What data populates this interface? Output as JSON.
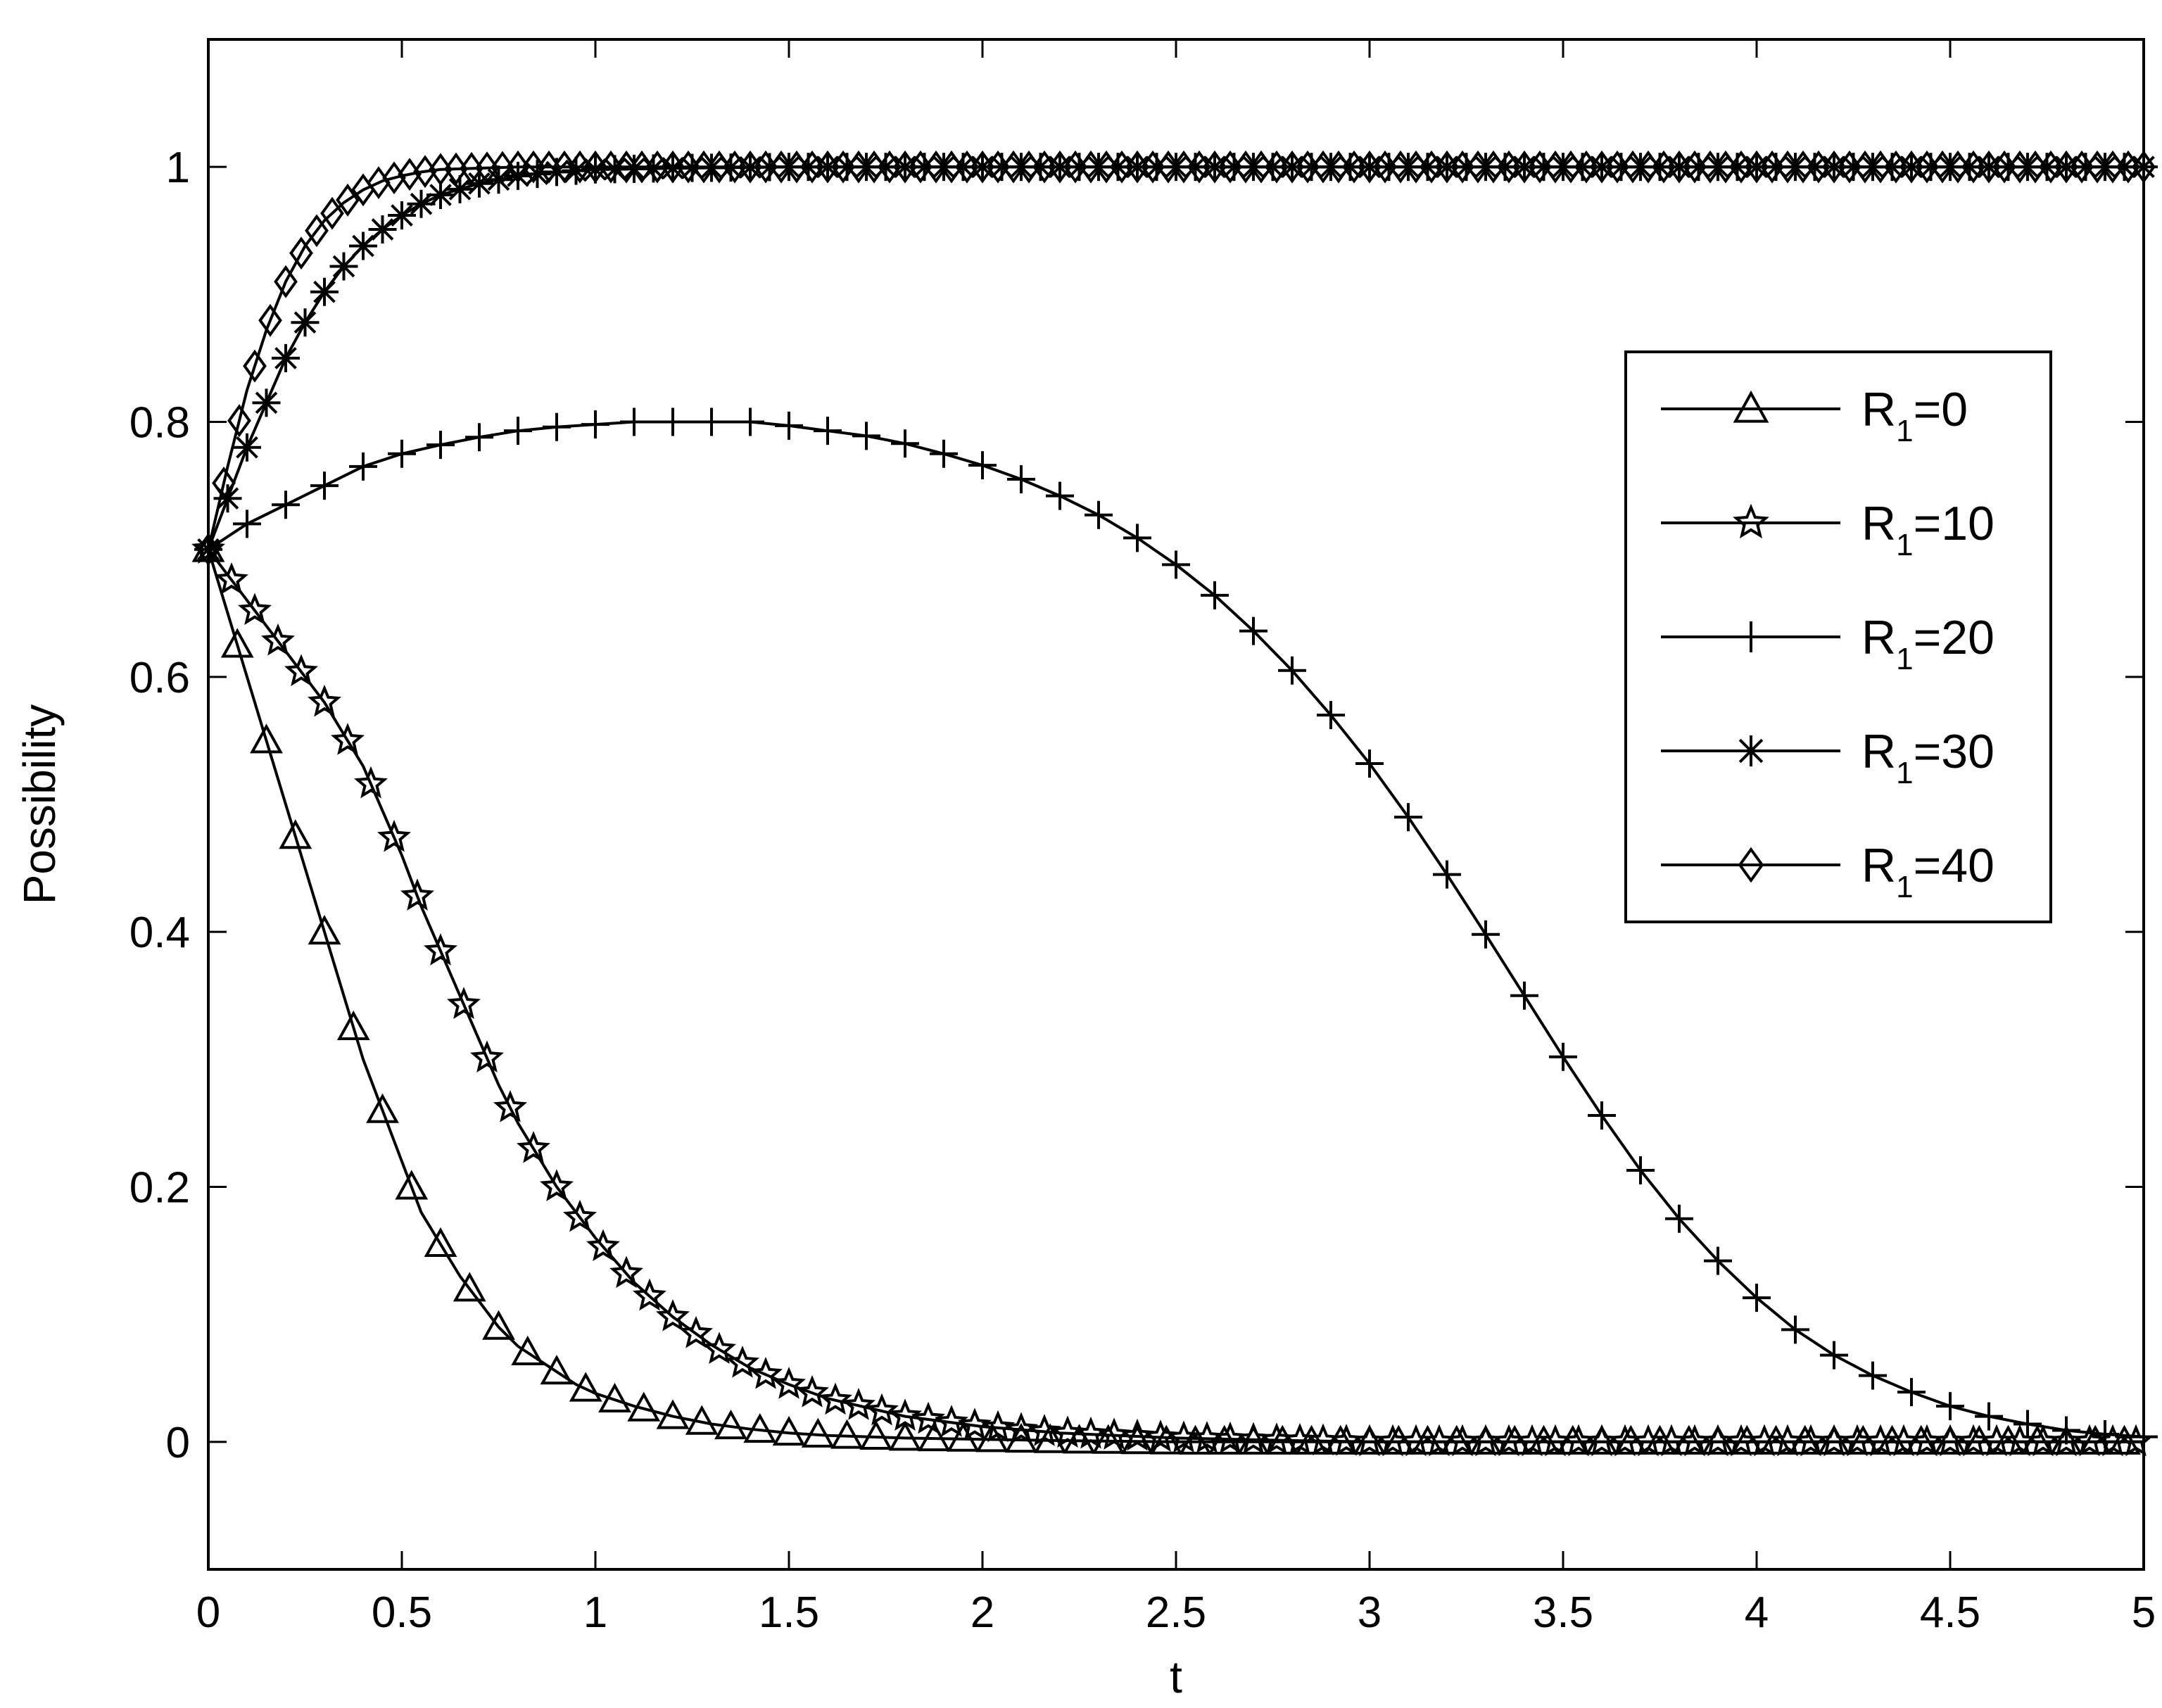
{
  "chart_data": {
    "type": "line",
    "title": "",
    "xlabel": "t",
    "ylabel": "Possibility",
    "xlim": [
      0,
      5
    ],
    "ylim": [
      -0.1,
      1.1
    ],
    "xticks": [
      0,
      0.5,
      1,
      1.5,
      2,
      2.5,
      3,
      3.5,
      4,
      4.5,
      5
    ],
    "xtick_labels": [
      "0",
      "0.5",
      "1",
      "1.5",
      "2",
      "2.5",
      "3",
      "3.5",
      "4",
      "4.5",
      "5"
    ],
    "yticks": [
      0,
      0.2,
      0.4,
      0.6,
      0.8,
      1
    ],
    "ytick_labels": [
      "0",
      "0.2",
      "0.4",
      "0.6",
      "0.8",
      "1"
    ],
    "grid": false,
    "legend_position": "right",
    "series": [
      {
        "name": "R1=0",
        "label_main": "R",
        "label_sub": "1",
        "label_rest": "=0",
        "marker": "triangle",
        "x": [
          0,
          0.04,
          0.08,
          0.12,
          0.16,
          0.2,
          0.25,
          0.3,
          0.35,
          0.4,
          0.45,
          0.5,
          0.55,
          0.6,
          0.65,
          0.7,
          0.75,
          0.8,
          0.85,
          0.9,
          0.95,
          1.0,
          1.1,
          1.2,
          1.3,
          1.4,
          1.5,
          1.6,
          1.8,
          2.0,
          2.2,
          2.5,
          2.8,
          3.0,
          3.3,
          3.6,
          4.0,
          4.5,
          5.0
        ],
        "y": [
          0.7,
          0.66,
          0.62,
          0.58,
          0.54,
          0.5,
          0.45,
          0.4,
          0.35,
          0.3,
          0.26,
          0.22,
          0.18,
          0.155,
          0.13,
          0.11,
          0.09,
          0.075,
          0.065,
          0.055,
          0.045,
          0.038,
          0.028,
          0.02,
          0.014,
          0.01,
          0.007,
          0.005,
          0.003,
          0.002,
          0.001,
          0,
          0,
          0,
          0,
          0,
          0,
          0,
          0
        ]
      },
      {
        "name": "R1=10",
        "label_main": "R",
        "label_sub": "1",
        "label_rest": "=10",
        "marker": "star",
        "x": [
          0,
          0.05,
          0.1,
          0.15,
          0.2,
          0.25,
          0.3,
          0.35,
          0.4,
          0.45,
          0.5,
          0.55,
          0.6,
          0.65,
          0.7,
          0.75,
          0.8,
          0.85,
          0.9,
          0.95,
          1.0,
          1.1,
          1.2,
          1.3,
          1.4,
          1.5,
          1.6,
          1.8,
          2.0,
          2.2,
          2.5,
          2.8,
          3.0,
          3.5,
          4.0,
          4.5,
          5.0
        ],
        "y": [
          0.7,
          0.68,
          0.66,
          0.64,
          0.62,
          0.6,
          0.58,
          0.555,
          0.53,
          0.495,
          0.46,
          0.42,
          0.385,
          0.35,
          0.315,
          0.28,
          0.25,
          0.225,
          0.2,
          0.18,
          0.16,
          0.125,
          0.098,
          0.076,
          0.058,
          0.045,
          0.034,
          0.02,
          0.012,
          0.007,
          0.003,
          0.001,
          0,
          0,
          0,
          0,
          0
        ]
      },
      {
        "name": "R1=20",
        "label_main": "R",
        "label_sub": "1",
        "label_rest": "=20",
        "marker": "plus",
        "x": [
          0,
          0.1,
          0.2,
          0.3,
          0.4,
          0.5,
          0.6,
          0.7,
          0.8,
          0.9,
          1.0,
          1.1,
          1.2,
          1.3,
          1.4,
          1.5,
          1.6,
          1.7,
          1.8,
          1.9,
          2.0,
          2.1,
          2.2,
          2.3,
          2.4,
          2.5,
          2.6,
          2.7,
          2.8,
          2.9,
          3.0,
          3.1,
          3.2,
          3.3,
          3.4,
          3.5,
          3.6,
          3.7,
          3.8,
          3.9,
          4.0,
          4.1,
          4.2,
          4.3,
          4.4,
          4.5,
          4.6,
          4.7,
          4.8,
          4.9,
          5.0
        ],
        "y": [
          0.7,
          0.72,
          0.735,
          0.75,
          0.765,
          0.775,
          0.782,
          0.788,
          0.793,
          0.796,
          0.798,
          0.8,
          0.8,
          0.8,
          0.8,
          0.797,
          0.793,
          0.789,
          0.783,
          0.775,
          0.766,
          0.755,
          0.742,
          0.727,
          0.709,
          0.688,
          0.664,
          0.636,
          0.605,
          0.57,
          0.532,
          0.49,
          0.445,
          0.398,
          0.35,
          0.302,
          0.256,
          0.213,
          0.175,
          0.142,
          0.113,
          0.088,
          0.068,
          0.052,
          0.039,
          0.028,
          0.02,
          0.014,
          0.009,
          0.006,
          0.004
        ]
      },
      {
        "name": "R1=30",
        "label_main": "R",
        "label_sub": "1",
        "label_rest": "=30",
        "marker": "asterisk",
        "x": [
          0,
          0.05,
          0.1,
          0.15,
          0.2,
          0.25,
          0.3,
          0.35,
          0.4,
          0.45,
          0.5,
          0.55,
          0.6,
          0.7,
          0.8,
          0.9,
          1.0,
          1.2,
          1.5,
          2.0,
          2.5,
          3.0,
          3.5,
          4.0,
          4.5,
          5.0
        ],
        "y": [
          0.7,
          0.74,
          0.78,
          0.815,
          0.85,
          0.878,
          0.902,
          0.922,
          0.938,
          0.951,
          0.962,
          0.971,
          0.978,
          0.987,
          0.993,
          0.996,
          0.998,
          0.999,
          1.0,
          1.0,
          1.0,
          1.0,
          1.0,
          1.0,
          1.0,
          1.0
        ]
      },
      {
        "name": "R1=40",
        "label_main": "R",
        "label_sub": "1",
        "label_rest": "=40",
        "marker": "diamond",
        "x": [
          0,
          0.05,
          0.1,
          0.15,
          0.2,
          0.25,
          0.3,
          0.35,
          0.4,
          0.45,
          0.5,
          0.55,
          0.6,
          0.7,
          0.8,
          1.0,
          1.5,
          2.0,
          2.5,
          3.0,
          3.5,
          4.0,
          4.5,
          5.0
        ],
        "y": [
          0.7,
          0.765,
          0.825,
          0.872,
          0.91,
          0.938,
          0.958,
          0.972,
          0.982,
          0.989,
          0.993,
          0.996,
          0.998,
          0.999,
          1.0,
          1.0,
          1.0,
          1.0,
          1.0,
          1.0,
          1.0,
          1.0,
          1.0,
          1.0
        ]
      }
    ]
  }
}
